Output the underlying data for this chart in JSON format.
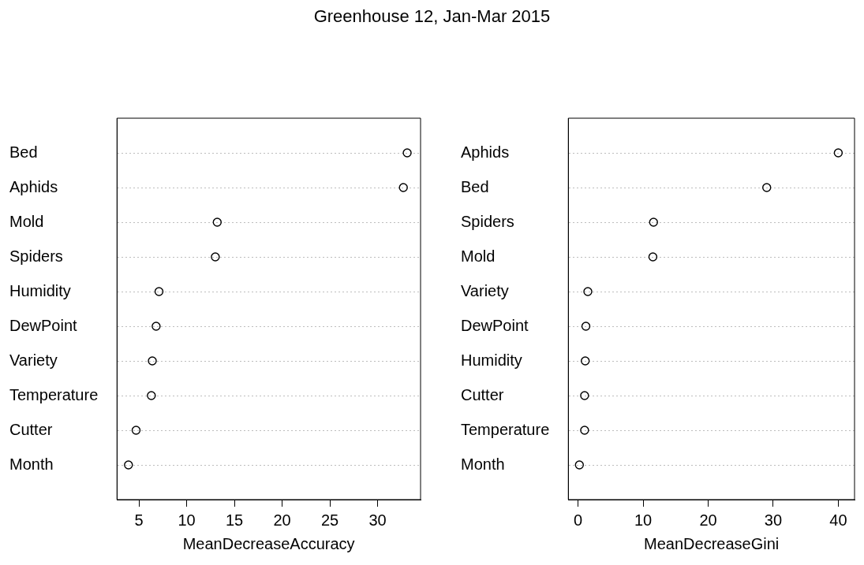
{
  "chart_data": [
    {
      "type": "scatter",
      "title": "Greenhouse 12, Jan-Mar 2015",
      "orientation": "horizontal",
      "marker": "circle",
      "grid": "y",
      "legend": false,
      "xlabel": "MeanDecreaseAccuracy",
      "categories": [
        "Bed",
        "Aphids",
        "Mold",
        "Spiders",
        "Humidity",
        "DewPoint",
        "Variety",
        "Temperature",
        "Cutter",
        "Month"
      ],
      "series": [
        {
          "color": "#000000",
          "values": [
            33.1,
            32.7,
            13.2,
            13.0,
            7.1,
            6.8,
            6.4,
            6.3,
            4.7,
            3.9
          ]
        }
      ],
      "xlim": [
        2.7,
        34.5
      ],
      "xticks": [
        5,
        10,
        15,
        20,
        25,
        30
      ]
    },
    {
      "type": "scatter",
      "orientation": "horizontal",
      "marker": "circle",
      "grid": "y",
      "legend": false,
      "xlabel": "MeanDecreaseGini",
      "categories": [
        "Aphids",
        "Bed",
        "Spiders",
        "Mold",
        "Variety",
        "DewPoint",
        "Humidity",
        "Cutter",
        "Temperature",
        "Month"
      ],
      "series": [
        {
          "color": "#000000",
          "values": [
            40.0,
            29.0,
            11.6,
            11.5,
            1.5,
            1.2,
            1.1,
            1.0,
            1.0,
            0.2
          ]
        }
      ],
      "xlim": [
        -1.5,
        42.5
      ],
      "xticks": [
        0,
        10,
        20,
        30,
        40
      ]
    }
  ]
}
